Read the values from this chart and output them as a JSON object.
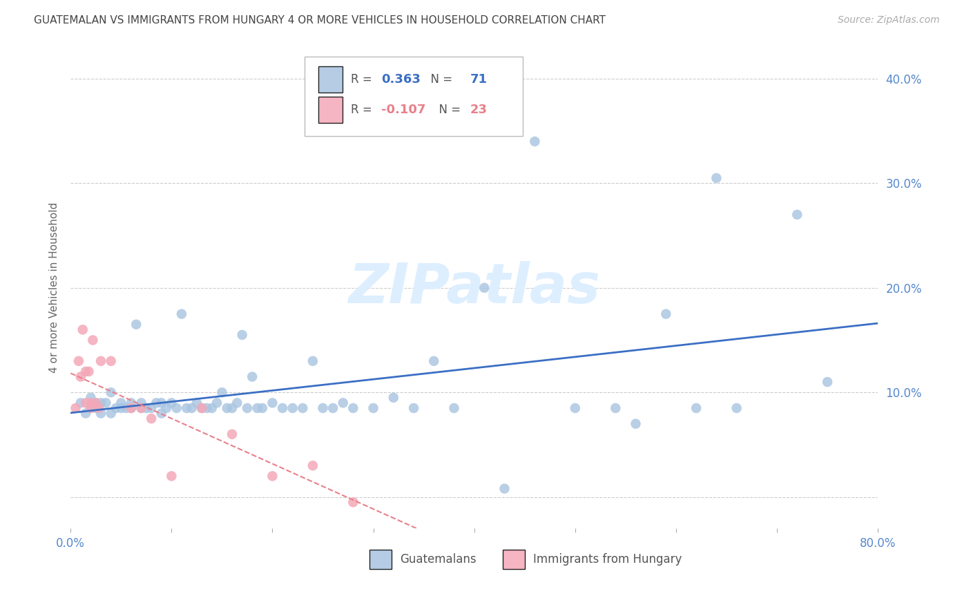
{
  "title": "GUATEMALAN VS IMMIGRANTS FROM HUNGARY 4 OR MORE VEHICLES IN HOUSEHOLD CORRELATION CHART",
  "source": "Source: ZipAtlas.com",
  "ylabel": "4 or more Vehicles in Household",
  "legend_labels": [
    "Guatemalans",
    "Immigrants from Hungary"
  ],
  "blue_color": "#A8C4E0",
  "pink_color": "#F4A8B8",
  "blue_line_color": "#3B6FC4",
  "pink_line_color": "#E8808A",
  "r_blue": "0.363",
  "n_blue": "71",
  "r_pink": "-0.107",
  "n_pink": "23",
  "xlim": [
    0.0,
    0.8
  ],
  "ylim": [
    -0.03,
    0.43
  ],
  "xticks": [
    0.0,
    0.1,
    0.2,
    0.3,
    0.4,
    0.5,
    0.6,
    0.7,
    0.8
  ],
  "yticks": [
    0.0,
    0.1,
    0.2,
    0.3,
    0.4
  ],
  "ytick_labels": [
    "",
    "10.0%",
    "20.0%",
    "30.0%",
    "40.0%"
  ],
  "xtick_labels": [
    "0.0%",
    "",
    "",
    "",
    "",
    "",
    "",
    "",
    "80.0%"
  ],
  "blue_scatter_x": [
    0.01,
    0.015,
    0.02,
    0.02,
    0.025,
    0.025,
    0.03,
    0.03,
    0.035,
    0.04,
    0.04,
    0.045,
    0.05,
    0.05,
    0.055,
    0.06,
    0.06,
    0.065,
    0.07,
    0.07,
    0.075,
    0.08,
    0.085,
    0.09,
    0.09,
    0.095,
    0.1,
    0.105,
    0.11,
    0.115,
    0.12,
    0.125,
    0.13,
    0.135,
    0.14,
    0.145,
    0.15,
    0.155,
    0.16,
    0.165,
    0.17,
    0.175,
    0.18,
    0.185,
    0.19,
    0.2,
    0.21,
    0.22,
    0.23,
    0.24,
    0.25,
    0.26,
    0.27,
    0.28,
    0.3,
    0.32,
    0.34,
    0.36,
    0.38,
    0.41,
    0.43,
    0.46,
    0.5,
    0.54,
    0.56,
    0.59,
    0.62,
    0.64,
    0.66,
    0.72,
    0.75
  ],
  "blue_scatter_y": [
    0.09,
    0.08,
    0.095,
    0.085,
    0.09,
    0.085,
    0.08,
    0.09,
    0.09,
    0.1,
    0.08,
    0.085,
    0.085,
    0.09,
    0.085,
    0.085,
    0.09,
    0.165,
    0.085,
    0.09,
    0.085,
    0.085,
    0.09,
    0.08,
    0.09,
    0.085,
    0.09,
    0.085,
    0.175,
    0.085,
    0.085,
    0.09,
    0.085,
    0.085,
    0.085,
    0.09,
    0.1,
    0.085,
    0.085,
    0.09,
    0.155,
    0.085,
    0.115,
    0.085,
    0.085,
    0.09,
    0.085,
    0.085,
    0.085,
    0.13,
    0.085,
    0.085,
    0.09,
    0.085,
    0.085,
    0.095,
    0.085,
    0.13,
    0.085,
    0.2,
    0.008,
    0.34,
    0.085,
    0.085,
    0.07,
    0.175,
    0.085,
    0.305,
    0.085,
    0.27,
    0.11
  ],
  "pink_scatter_x": [
    0.005,
    0.008,
    0.01,
    0.012,
    0.015,
    0.015,
    0.018,
    0.02,
    0.02,
    0.022,
    0.025,
    0.028,
    0.03,
    0.04,
    0.06,
    0.07,
    0.08,
    0.1,
    0.13,
    0.16,
    0.2,
    0.24,
    0.28
  ],
  "pink_scatter_y": [
    0.085,
    0.13,
    0.115,
    0.16,
    0.12,
    0.09,
    0.12,
    0.09,
    0.085,
    0.15,
    0.09,
    0.085,
    0.13,
    0.13,
    0.085,
    0.085,
    0.075,
    0.02,
    0.085,
    0.06,
    0.02,
    0.03,
    -0.005
  ],
  "background_color": "#ffffff",
  "grid_color": "#cccccc",
  "tick_label_color": "#5588CC",
  "title_color": "#444444",
  "watermark_text": "ZIPatlas",
  "watermark_color": "#ddeeff"
}
